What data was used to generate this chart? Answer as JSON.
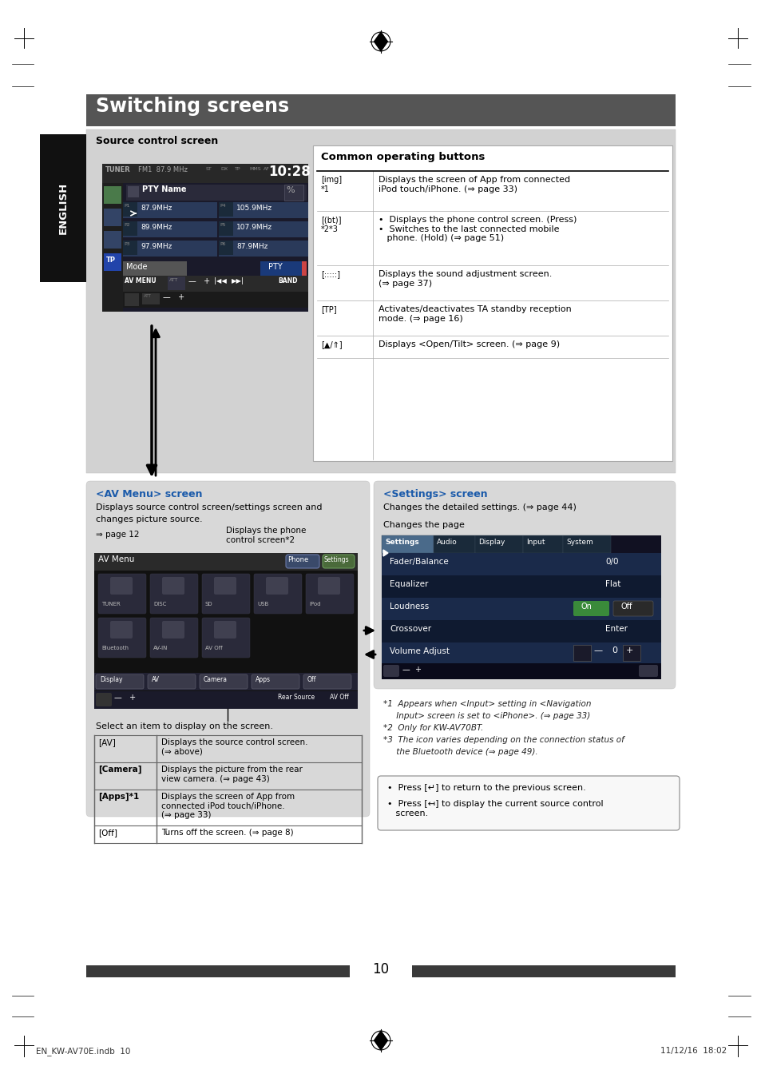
{
  "page_bg": "#ffffff",
  "title_bg": "#555555",
  "title_text": "Switching screens",
  "title_color": "#ffffff",
  "english_tab_bg": "#111111",
  "english_tab_text": "ENGLISH",
  "source_section_bg": "#d0d0d0",
  "source_control_label": "Source control screen",
  "common_buttons_title": "Common operating buttons",
  "table_rows_icons": [
    "[img]*1",
    "[(bt)]*2*3",
    "[::::]",
    "[TP]",
    "[▲/⇓]"
  ],
  "table_rows_descs": [
    "Displays the screen of App from connected\niPod touch/iPhone. (⇒ page 33)",
    "  •  Displays the phone control screen. (Press)\n  •  Switches to the last connected mobile\n     phone. (Hold) (⇒ page 51)",
    "Displays the sound adjustment screen.\n(⇒ page 37)",
    "Activates/deactivates TA standby reception\nmode. (⇒ page 16)",
    "Displays <Open/Tilt> screen. (⇒ page 9)"
  ],
  "av_menu_title": "<AV Menu> screen",
  "av_menu_desc1": "Displays source control screen/settings screen and",
  "av_menu_desc2": "changes picture source.",
  "av_menu_label1": "⇒ page 12",
  "av_menu_label2": "Displays the phone\ncontrol screen*2",
  "settings_title": "<Settings> screen",
  "settings_desc": "Changes the detailed settings. (⇒ page 44)",
  "changes_page": "Changes the page",
  "select_text": "Select an item to display on the screen.",
  "bottom_table_keys": [
    "[AV]",
    "[Camera]",
    "[Apps]*1",
    "[Off]"
  ],
  "bottom_table_descs": [
    "Displays the source control screen.\n(⇒ above)",
    "Displays the picture from the rear\nview camera. (⇒ page 43)",
    "Displays the screen of App from\nconnected iPod touch/iPhone.\n(⇒ page 33)",
    "Turns off the screen. (⇒ page 8)"
  ],
  "footnotes": [
    "*1  Appears when <Input> setting in <Navigation",
    "     Input> screen is set to <iPhone>. (⇒ page 33)",
    "*2  Only for KW-AV70BT.",
    "*3  The icon varies depending on the connection status of",
    "     the Bluetooth device (⇒ page 49)."
  ],
  "press_notes": [
    "•  Press [↵] to return to the previous screen.",
    "•  Press [↤] to display the current source control\n   screen."
  ],
  "page_number": "10",
  "footer_left": "EN_KW-AV70E.indb  10",
  "footer_right": "11/12/16  18:02"
}
